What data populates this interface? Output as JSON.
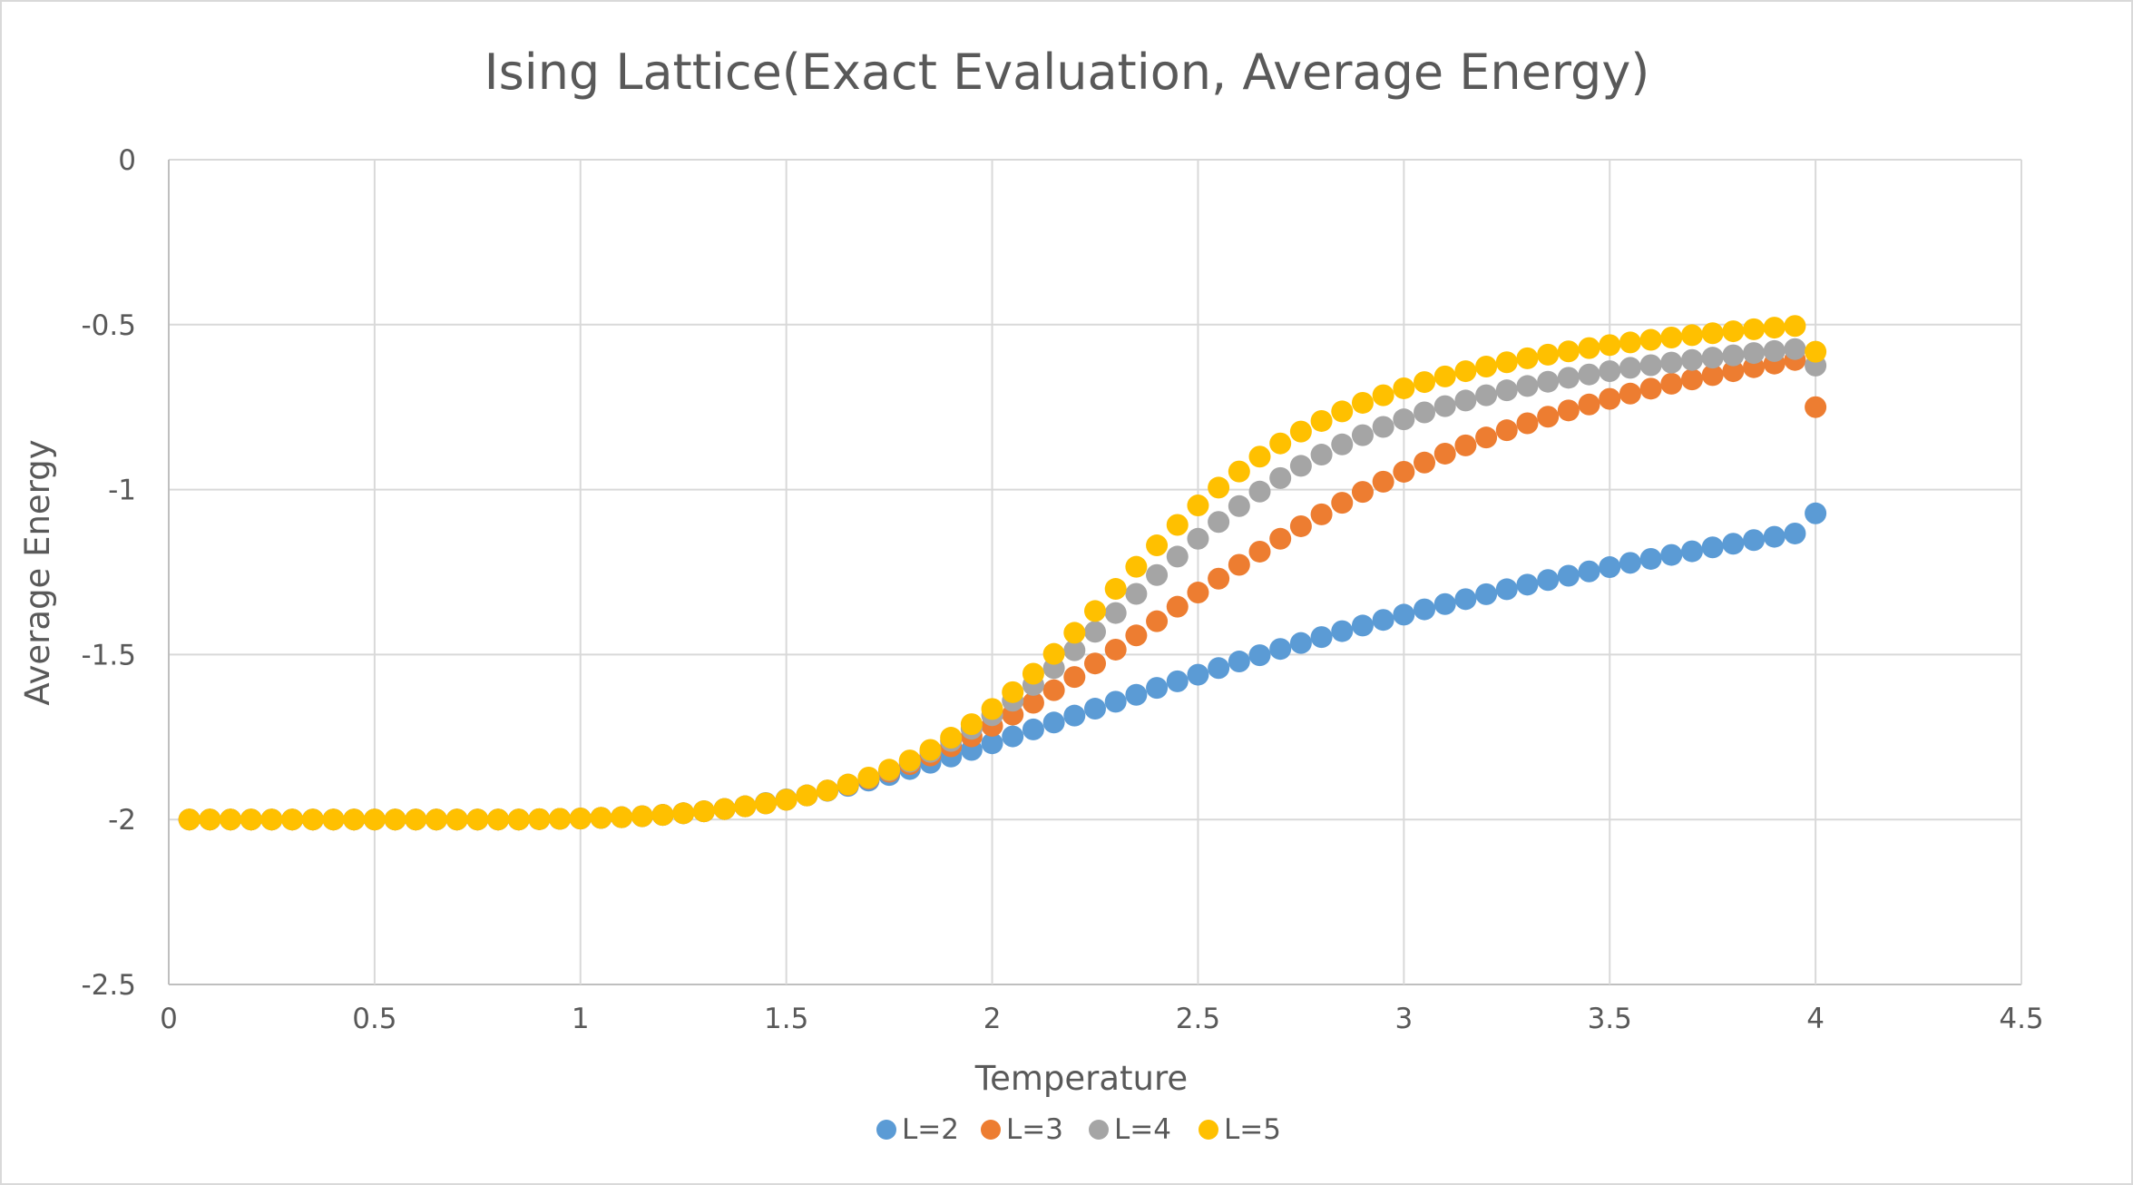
{
  "chart_data": {
    "type": "scatter",
    "title": "Ising Lattice(Exact Evaluation, Average Energy)",
    "xlabel": "Temperature",
    "ylabel": "Average Energy",
    "xlim": [
      0,
      4.5
    ],
    "ylim": [
      -2.5,
      0
    ],
    "xticks": [
      0,
      0.5,
      1,
      1.5,
      2,
      2.5,
      3,
      3.5,
      4,
      4.5
    ],
    "yticks": [
      0,
      -0.5,
      -1,
      -1.5,
      -2,
      -2.5
    ],
    "xtick_labels": [
      "0",
      "0.5",
      "1",
      "1.5",
      "2",
      "2.5",
      "3",
      "3.5",
      "4",
      "4.5"
    ],
    "ytick_labels": [
      "0",
      "-0.5",
      "-1",
      "-1.5",
      "-2",
      "-2.5"
    ],
    "grid": true,
    "legend_position": "bottom",
    "x": [
      0.05,
      0.1,
      0.15,
      0.2,
      0.25,
      0.3,
      0.35,
      0.4,
      0.45,
      0.5,
      0.55,
      0.6,
      0.65,
      0.7,
      0.75,
      0.8,
      0.85,
      0.9,
      0.95,
      1.0,
      1.05,
      1.1,
      1.15,
      1.2,
      1.25,
      1.3,
      1.35,
      1.4,
      1.45,
      1.5,
      1.55,
      1.6,
      1.65,
      1.7,
      1.75,
      1.8,
      1.85,
      1.9,
      1.95,
      2.0,
      2.05,
      2.1,
      2.15,
      2.2,
      2.25,
      2.3,
      2.35,
      2.4,
      2.45,
      2.5,
      2.55,
      2.6,
      2.65,
      2.7,
      2.75,
      2.8,
      2.85,
      2.9,
      2.95,
      3.0,
      3.05,
      3.1,
      3.15,
      3.2,
      3.25,
      3.3,
      3.35,
      3.4,
      3.45,
      3.5,
      3.55,
      3.6,
      3.65,
      3.7,
      3.75,
      3.8,
      3.85,
      3.9,
      3.95,
      4.0
    ],
    "series": [
      {
        "name": "L=2",
        "color": "#5b9bd5",
        "values": [
          -2.0,
          -2.0,
          -2.0,
          -2.0,
          -2.0,
          -2.0,
          -2.0,
          -2.0,
          -2.0,
          -2.0,
          -2.0,
          -2.0,
          -2.0,
          -2.0,
          -2.0,
          -2.0,
          -2.0,
          -1.999,
          -1.998,
          -1.997,
          -1.995,
          -1.993,
          -1.99,
          -1.986,
          -1.981,
          -1.975,
          -1.968,
          -1.96,
          -1.95,
          -1.939,
          -1.927,
          -1.913,
          -1.898,
          -1.882,
          -1.865,
          -1.847,
          -1.828,
          -1.809,
          -1.789,
          -1.769,
          -1.748,
          -1.727,
          -1.706,
          -1.685,
          -1.664,
          -1.643,
          -1.622,
          -1.601,
          -1.581,
          -1.561,
          -1.541,
          -1.521,
          -1.502,
          -1.483,
          -1.465,
          -1.447,
          -1.429,
          -1.412,
          -1.395,
          -1.379,
          -1.363,
          -1.347,
          -1.332,
          -1.317,
          -1.302,
          -1.288,
          -1.274,
          -1.261,
          -1.248,
          -1.235,
          -1.222,
          -1.21,
          -1.198,
          -1.187,
          -1.175,
          -1.164,
          -1.153,
          -1.143,
          -1.133,
          -1.072
        ]
      },
      {
        "name": "L=3",
        "color": "#ed7d31",
        "values": [
          -2.0,
          -2.0,
          -2.0,
          -2.0,
          -2.0,
          -2.0,
          -2.0,
          -2.0,
          -2.0,
          -2.0,
          -2.0,
          -2.0,
          -2.0,
          -2.0,
          -2.0,
          -2.0,
          -2.0,
          -1.999,
          -1.998,
          -1.997,
          -1.995,
          -1.993,
          -1.99,
          -1.986,
          -1.981,
          -1.975,
          -1.968,
          -1.96,
          -1.951,
          -1.94,
          -1.927,
          -1.912,
          -1.895,
          -1.876,
          -1.855,
          -1.832,
          -1.806,
          -1.778,
          -1.748,
          -1.716,
          -1.682,
          -1.646,
          -1.608,
          -1.568,
          -1.527,
          -1.485,
          -1.442,
          -1.399,
          -1.355,
          -1.312,
          -1.27,
          -1.228,
          -1.188,
          -1.149,
          -1.111,
          -1.075,
          -1.04,
          -1.007,
          -0.976,
          -0.946,
          -0.918,
          -0.891,
          -0.866,
          -0.842,
          -0.82,
          -0.799,
          -0.779,
          -0.76,
          -0.742,
          -0.725,
          -0.709,
          -0.694,
          -0.679,
          -0.666,
          -0.653,
          -0.641,
          -0.629,
          -0.618,
          -0.607,
          -0.75
        ]
      },
      {
        "name": "L=4",
        "color": "#a5a5a5",
        "values": [
          -2.0,
          -2.0,
          -2.0,
          -2.0,
          -2.0,
          -2.0,
          -2.0,
          -2.0,
          -2.0,
          -2.0,
          -2.0,
          -2.0,
          -2.0,
          -2.0,
          -2.0,
          -2.0,
          -2.0,
          -1.999,
          -1.998,
          -1.997,
          -1.995,
          -1.993,
          -1.99,
          -1.986,
          -1.981,
          -1.975,
          -1.968,
          -1.96,
          -1.951,
          -1.94,
          -1.927,
          -1.912,
          -1.894,
          -1.874,
          -1.851,
          -1.825,
          -1.795,
          -1.762,
          -1.725,
          -1.684,
          -1.64,
          -1.592,
          -1.541,
          -1.487,
          -1.431,
          -1.374,
          -1.316,
          -1.259,
          -1.203,
          -1.149,
          -1.098,
          -1.05,
          -1.006,
          -0.965,
          -0.928,
          -0.894,
          -0.863,
          -0.835,
          -0.81,
          -0.787,
          -0.766,
          -0.747,
          -0.73,
          -0.714,
          -0.699,
          -0.686,
          -0.673,
          -0.661,
          -0.651,
          -0.641,
          -0.631,
          -0.623,
          -0.615,
          -0.607,
          -0.6,
          -0.593,
          -0.586,
          -0.58,
          -0.574,
          -0.624
        ]
      },
      {
        "name": "L=5",
        "color": "#ffc000",
        "values": [
          -2.0,
          -2.0,
          -2.0,
          -2.0,
          -2.0,
          -2.0,
          -2.0,
          -2.0,
          -2.0,
          -2.0,
          -2.0,
          -2.0,
          -2.0,
          -2.0,
          -2.0,
          -2.0,
          -2.0,
          -1.999,
          -1.998,
          -1.997,
          -1.995,
          -1.993,
          -1.99,
          -1.986,
          -1.981,
          -1.975,
          -1.968,
          -1.96,
          -1.951,
          -1.94,
          -1.927,
          -1.912,
          -1.894,
          -1.873,
          -1.849,
          -1.821,
          -1.789,
          -1.752,
          -1.711,
          -1.665,
          -1.614,
          -1.558,
          -1.498,
          -1.434,
          -1.368,
          -1.301,
          -1.234,
          -1.169,
          -1.107,
          -1.048,
          -0.994,
          -0.945,
          -0.9,
          -0.86,
          -0.824,
          -0.792,
          -0.763,
          -0.737,
          -0.714,
          -0.693,
          -0.674,
          -0.657,
          -0.641,
          -0.627,
          -0.614,
          -0.602,
          -0.591,
          -0.581,
          -0.571,
          -0.562,
          -0.554,
          -0.546,
          -0.539,
          -0.532,
          -0.526,
          -0.52,
          -0.514,
          -0.509,
          -0.504,
          -0.582
        ]
      }
    ]
  }
}
